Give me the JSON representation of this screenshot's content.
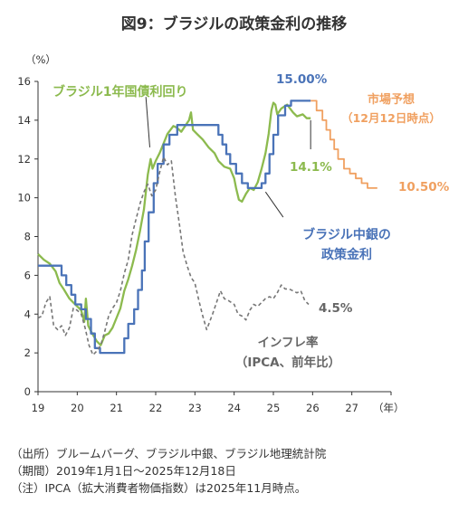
{
  "chart_data": {
    "type": "line",
    "title": "図9：ブラジルの政策金利の推移",
    "ylabel": "（%）",
    "xlabel": "（年）",
    "ylim": [
      0,
      16
    ],
    "xlim": [
      2019,
      2028
    ],
    "y_ticks": [
      "0",
      "2",
      "4",
      "6",
      "8",
      "10",
      "12",
      "14",
      "16"
    ],
    "x_ticks": [
      "19",
      "20",
      "21",
      "22",
      "23",
      "24",
      "25",
      "26",
      "27"
    ],
    "grid": false,
    "series": [
      {
        "name": "ブラジル1年国債利回り",
        "color": "#8cba4e",
        "dash": "solid",
        "points": [
          [
            2019.0,
            7.1
          ],
          [
            2019.15,
            6.8
          ],
          [
            2019.3,
            6.6
          ],
          [
            2019.45,
            6.2
          ],
          [
            2019.55,
            5.6
          ],
          [
            2019.65,
            5.3
          ],
          [
            2019.8,
            4.8
          ],
          [
            2019.9,
            4.6
          ],
          [
            2020.0,
            4.4
          ],
          [
            2020.1,
            4.2
          ],
          [
            2020.18,
            3.6
          ],
          [
            2020.22,
            4.8
          ],
          [
            2020.28,
            3.4
          ],
          [
            2020.38,
            3.0
          ],
          [
            2020.5,
            2.6
          ],
          [
            2020.6,
            2.4
          ],
          [
            2020.7,
            2.9
          ],
          [
            2020.8,
            3.0
          ],
          [
            2020.9,
            3.3
          ],
          [
            2021.0,
            3.8
          ],
          [
            2021.1,
            4.3
          ],
          [
            2021.2,
            5.2
          ],
          [
            2021.3,
            5.8
          ],
          [
            2021.4,
            6.5
          ],
          [
            2021.5,
            7.3
          ],
          [
            2021.6,
            8.3
          ],
          [
            2021.7,
            9.4
          ],
          [
            2021.8,
            11.2
          ],
          [
            2021.87,
            12.0
          ],
          [
            2021.92,
            11.5
          ],
          [
            2022.0,
            11.9
          ],
          [
            2022.1,
            12.3
          ],
          [
            2022.2,
            12.8
          ],
          [
            2022.3,
            13.3
          ],
          [
            2022.45,
            13.7
          ],
          [
            2022.55,
            13.6
          ],
          [
            2022.65,
            13.4
          ],
          [
            2022.75,
            13.7
          ],
          [
            2022.85,
            14.0
          ],
          [
            2022.9,
            14.4
          ],
          [
            2022.95,
            13.5
          ],
          [
            2023.05,
            13.3
          ],
          [
            2023.2,
            13.0
          ],
          [
            2023.35,
            12.6
          ],
          [
            2023.5,
            12.3
          ],
          [
            2023.6,
            11.9
          ],
          [
            2023.75,
            11.6
          ],
          [
            2023.9,
            11.5
          ],
          [
            2024.0,
            11.0
          ],
          [
            2024.05,
            10.5
          ],
          [
            2024.12,
            9.9
          ],
          [
            2024.2,
            9.8
          ],
          [
            2024.3,
            10.2
          ],
          [
            2024.4,
            10.5
          ],
          [
            2024.5,
            10.4
          ],
          [
            2024.6,
            10.8
          ],
          [
            2024.7,
            11.5
          ],
          [
            2024.8,
            12.3
          ],
          [
            2024.88,
            13.3
          ],
          [
            2024.95,
            14.5
          ],
          [
            2025.0,
            14.9
          ],
          [
            2025.05,
            14.8
          ],
          [
            2025.1,
            14.3
          ],
          [
            2025.2,
            14.6
          ],
          [
            2025.35,
            14.8
          ],
          [
            2025.5,
            14.4
          ],
          [
            2025.6,
            14.2
          ],
          [
            2025.75,
            14.3
          ],
          [
            2025.85,
            14.1
          ],
          [
            2025.95,
            14.1
          ]
        ]
      },
      {
        "name": "ブラジル中銀の政策金利",
        "color": "#4a73b8",
        "dash": "solid",
        "points": [
          [
            2019.0,
            6.5
          ],
          [
            2019.6,
            6.5
          ],
          [
            2019.6,
            6.0
          ],
          [
            2019.72,
            6.0
          ],
          [
            2019.72,
            5.5
          ],
          [
            2019.85,
            5.5
          ],
          [
            2019.85,
            5.0
          ],
          [
            2019.95,
            5.0
          ],
          [
            2019.95,
            4.5
          ],
          [
            2020.1,
            4.5
          ],
          [
            2020.1,
            4.25
          ],
          [
            2020.22,
            4.25
          ],
          [
            2020.22,
            3.75
          ],
          [
            2020.35,
            3.75
          ],
          [
            2020.35,
            3.0
          ],
          [
            2020.45,
            3.0
          ],
          [
            2020.45,
            2.25
          ],
          [
            2020.58,
            2.25
          ],
          [
            2020.58,
            2.0
          ],
          [
            2021.2,
            2.0
          ],
          [
            2021.2,
            2.75
          ],
          [
            2021.3,
            2.75
          ],
          [
            2021.3,
            3.5
          ],
          [
            2021.45,
            3.5
          ],
          [
            2021.45,
            4.25
          ],
          [
            2021.55,
            4.25
          ],
          [
            2021.55,
            5.25
          ],
          [
            2021.65,
            5.25
          ],
          [
            2021.65,
            6.25
          ],
          [
            2021.72,
            6.25
          ],
          [
            2021.72,
            7.75
          ],
          [
            2021.82,
            7.75
          ],
          [
            2021.82,
            9.25
          ],
          [
            2021.95,
            9.25
          ],
          [
            2021.95,
            10.75
          ],
          [
            2022.05,
            10.75
          ],
          [
            2022.05,
            11.75
          ],
          [
            2022.2,
            11.75
          ],
          [
            2022.2,
            12.75
          ],
          [
            2022.35,
            12.75
          ],
          [
            2022.35,
            13.25
          ],
          [
            2022.55,
            13.25
          ],
          [
            2022.55,
            13.75
          ],
          [
            2023.6,
            13.75
          ],
          [
            2023.6,
            13.25
          ],
          [
            2023.7,
            13.25
          ],
          [
            2023.7,
            12.75
          ],
          [
            2023.8,
            12.75
          ],
          [
            2023.8,
            12.25
          ],
          [
            2023.9,
            12.25
          ],
          [
            2023.9,
            11.75
          ],
          [
            2024.05,
            11.75
          ],
          [
            2024.05,
            11.25
          ],
          [
            2024.2,
            11.25
          ],
          [
            2024.2,
            10.75
          ],
          [
            2024.35,
            10.75
          ],
          [
            2024.35,
            10.5
          ],
          [
            2024.7,
            10.5
          ],
          [
            2024.7,
            10.75
          ],
          [
            2024.8,
            10.75
          ],
          [
            2024.8,
            11.25
          ],
          [
            2024.9,
            11.25
          ],
          [
            2024.9,
            12.25
          ],
          [
            2025.0,
            12.25
          ],
          [
            2025.0,
            13.25
          ],
          [
            2025.12,
            13.25
          ],
          [
            2025.12,
            14.25
          ],
          [
            2025.3,
            14.25
          ],
          [
            2025.3,
            14.75
          ],
          [
            2025.45,
            14.75
          ],
          [
            2025.45,
            15.0
          ],
          [
            2025.95,
            15.0
          ]
        ]
      },
      {
        "name": "市場予想（12月12日時点）",
        "color": "#f0a060",
        "dash": "solid",
        "points": [
          [
            2025.95,
            15.0
          ],
          [
            2026.1,
            15.0
          ],
          [
            2026.1,
            14.5
          ],
          [
            2026.25,
            14.5
          ],
          [
            2026.25,
            14.0
          ],
          [
            2026.35,
            14.0
          ],
          [
            2026.35,
            13.5
          ],
          [
            2026.45,
            13.5
          ],
          [
            2026.45,
            13.0
          ],
          [
            2026.55,
            13.0
          ],
          [
            2026.55,
            12.5
          ],
          [
            2026.65,
            12.5
          ],
          [
            2026.65,
            12.0
          ],
          [
            2026.8,
            12.0
          ],
          [
            2026.8,
            11.5
          ],
          [
            2026.95,
            11.5
          ],
          [
            2026.95,
            11.25
          ],
          [
            2027.1,
            11.25
          ],
          [
            2027.1,
            11.0
          ],
          [
            2027.25,
            11.0
          ],
          [
            2027.25,
            10.75
          ],
          [
            2027.4,
            10.75
          ],
          [
            2027.4,
            10.5
          ],
          [
            2027.65,
            10.5
          ]
        ]
      },
      {
        "name": "インフレ率（IPCA、前年比）",
        "color": "#777777",
        "dash": "dashed",
        "points": [
          [
            2019.0,
            3.8
          ],
          [
            2019.1,
            3.9
          ],
          [
            2019.2,
            4.6
          ],
          [
            2019.3,
            4.9
          ],
          [
            2019.4,
            3.4
          ],
          [
            2019.5,
            3.2
          ],
          [
            2019.6,
            3.4
          ],
          [
            2019.7,
            2.9
          ],
          [
            2019.8,
            3.3
          ],
          [
            2019.9,
            4.3
          ],
          [
            2020.0,
            4.2
          ],
          [
            2020.1,
            4.0
          ],
          [
            2020.2,
            3.3
          ],
          [
            2020.3,
            2.4
          ],
          [
            2020.4,
            1.9
          ],
          [
            2020.5,
            2.1
          ],
          [
            2020.6,
            2.4
          ],
          [
            2020.7,
            3.1
          ],
          [
            2020.8,
            3.9
          ],
          [
            2020.9,
            4.3
          ],
          [
            2021.0,
            4.6
          ],
          [
            2021.1,
            5.2
          ],
          [
            2021.2,
            6.1
          ],
          [
            2021.3,
            6.8
          ],
          [
            2021.4,
            8.1
          ],
          [
            2021.5,
            8.9
          ],
          [
            2021.6,
            9.7
          ],
          [
            2021.7,
            10.3
          ],
          [
            2021.8,
            10.7
          ],
          [
            2021.9,
            10.1
          ],
          [
            2022.0,
            10.4
          ],
          [
            2022.1,
            11.3
          ],
          [
            2022.2,
            12.1
          ],
          [
            2022.3,
            11.7
          ],
          [
            2022.4,
            11.9
          ],
          [
            2022.5,
            10.1
          ],
          [
            2022.6,
            8.7
          ],
          [
            2022.7,
            7.2
          ],
          [
            2022.8,
            6.5
          ],
          [
            2022.9,
            5.9
          ],
          [
            2023.0,
            5.6
          ],
          [
            2023.1,
            4.7
          ],
          [
            2023.2,
            3.9
          ],
          [
            2023.3,
            3.2
          ],
          [
            2023.45,
            4.0
          ],
          [
            2023.55,
            4.6
          ],
          [
            2023.65,
            5.2
          ],
          [
            2023.75,
            4.8
          ],
          [
            2023.85,
            4.7
          ],
          [
            2024.0,
            4.5
          ],
          [
            2024.1,
            4.0
          ],
          [
            2024.2,
            3.9
          ],
          [
            2024.3,
            3.7
          ],
          [
            2024.4,
            4.2
          ],
          [
            2024.5,
            4.5
          ],
          [
            2024.6,
            4.4
          ],
          [
            2024.7,
            4.6
          ],
          [
            2024.8,
            4.8
          ],
          [
            2024.9,
            4.9
          ],
          [
            2025.0,
            4.8
          ],
          [
            2025.1,
            5.1
          ],
          [
            2025.2,
            5.5
          ],
          [
            2025.3,
            5.3
          ],
          [
            2025.4,
            5.3
          ],
          [
            2025.5,
            5.2
          ],
          [
            2025.6,
            5.1
          ],
          [
            2025.7,
            5.2
          ],
          [
            2025.8,
            4.7
          ],
          [
            2025.9,
            4.5
          ]
        ]
      }
    ],
    "annotations": {
      "bond_label": "ブラジル1年国債利回り",
      "policy_label_1": "ブラジル中銀の",
      "policy_label_2": "政策金利",
      "forecast_label_1": "市場予想",
      "forecast_label_2": "（12月12日時点）",
      "inflation_label_1": "インフレ率",
      "inflation_label_2": "（IPCA、前年比）",
      "value_policy_current": "15.00%",
      "value_bond_current": "14.1%",
      "value_forecast_end": "10.50%",
      "value_inflation_current": "4.5%"
    }
  },
  "notes": [
    "（出所）ブルームバーグ、ブラジル中銀、ブラジル地理統計院",
    "（期間）2019年1月1日～2025年12月18日",
    "（注）IPCA（拡大消費者物価指数）は2025年11月時点。"
  ]
}
